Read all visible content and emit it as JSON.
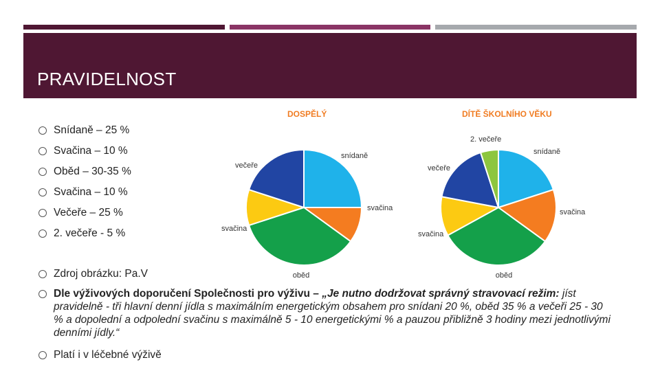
{
  "colors": {
    "bar1": "#4f1733",
    "bar2": "#8a3465",
    "bar3": "#a6a9ad",
    "header": "#4f1733"
  },
  "slide": {
    "title": "PRAVIDELNOST",
    "bullets": [
      "Snídaně – 25 %",
      "Svačina – 10 %",
      "Oběd – 30-35 %",
      "Svačina – 10 %",
      "Večeře – 25 %",
      "2. večeře - 5 %",
      "Zdroj obrázku: Pa.V"
    ],
    "recommendation": {
      "lead": "Dle výživových doporučení Společnosti pro výživu – ",
      "quote_bold": "„Je nutno dodržovat správný stravovací režim:",
      "quote_rest": " jíst pravidelně - tři hlavní denní jídla s maximálním energetickým obsahem pro snídani 20 %, oběd 35 % a večeři 25 - 30 % a dopolední a odpolední svačinu s maximálně 5 - 10 energetickými % a pauzou přibližně 3 hodiny mezi jednotlivými denními jídly.“"
    },
    "last_bullet": "Platí i v léčebné výživě"
  },
  "chart_data": [
    {
      "type": "pie",
      "title": "DOSPĚLÝ",
      "slices": [
        {
          "label": "snídaně",
          "value": 25,
          "color": "#1fb2ea"
        },
        {
          "label": "svačina",
          "value": 10,
          "color": "#f47c20"
        },
        {
          "label": "oběd",
          "value": 35,
          "color": "#14a04a"
        },
        {
          "label": "svačina",
          "value": 10,
          "color": "#fcca12"
        },
        {
          "label": "večeře",
          "value": 20,
          "color": "#2145a3"
        }
      ]
    },
    {
      "type": "pie",
      "title": "DÍTĚ ŠKOLNÍHO VĚKU",
      "slices": [
        {
          "label": "snídaně",
          "value": 20,
          "color": "#1fb2ea"
        },
        {
          "label": "svačina",
          "value": 15,
          "color": "#f47c20"
        },
        {
          "label": "oběd",
          "value": 32,
          "color": "#14a04a"
        },
        {
          "label": "svačina",
          "value": 11,
          "color": "#fcca12"
        },
        {
          "label": "večeře",
          "value": 17,
          "color": "#2145a3"
        },
        {
          "label": "2. večeře",
          "value": 5,
          "color": "#8dc63f"
        }
      ]
    }
  ]
}
